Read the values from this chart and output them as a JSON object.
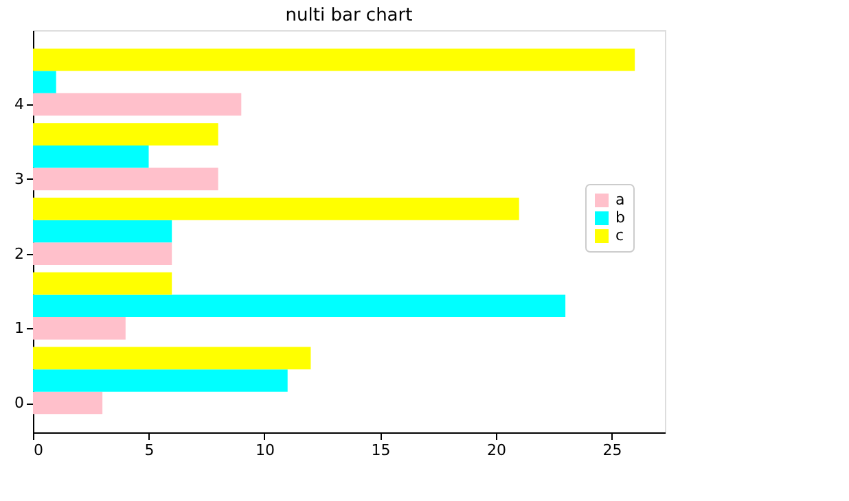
{
  "chart_data": {
    "type": "bar",
    "orientation": "horizontal",
    "title": "nulti bar chart",
    "series": [
      {
        "name": "a",
        "color": "#ffc0cb",
        "x": [
          0,
          1,
          2,
          3,
          4
        ],
        "values": [
          3,
          4,
          6,
          8,
          9
        ]
      },
      {
        "name": "b",
        "color": "#00ffff",
        "x": [
          0.3,
          1.3,
          2.3,
          3.3,
          4.3
        ],
        "values": [
          11,
          23,
          6,
          5,
          1
        ]
      },
      {
        "name": "c",
        "color": "#ffff00",
        "x": [
          0.6,
          1.6,
          2.6,
          3.6,
          4.6
        ],
        "values": [
          12,
          6,
          21,
          8,
          26
        ]
      }
    ],
    "xlim": [
      0,
      27.3
    ],
    "xticks": [
      0,
      5,
      10,
      15,
      20,
      25
    ],
    "ylim": [
      -0.395,
      4.995
    ],
    "yticks": [
      0,
      1,
      2,
      3,
      4
    ],
    "grid": false,
    "legend": "right"
  }
}
